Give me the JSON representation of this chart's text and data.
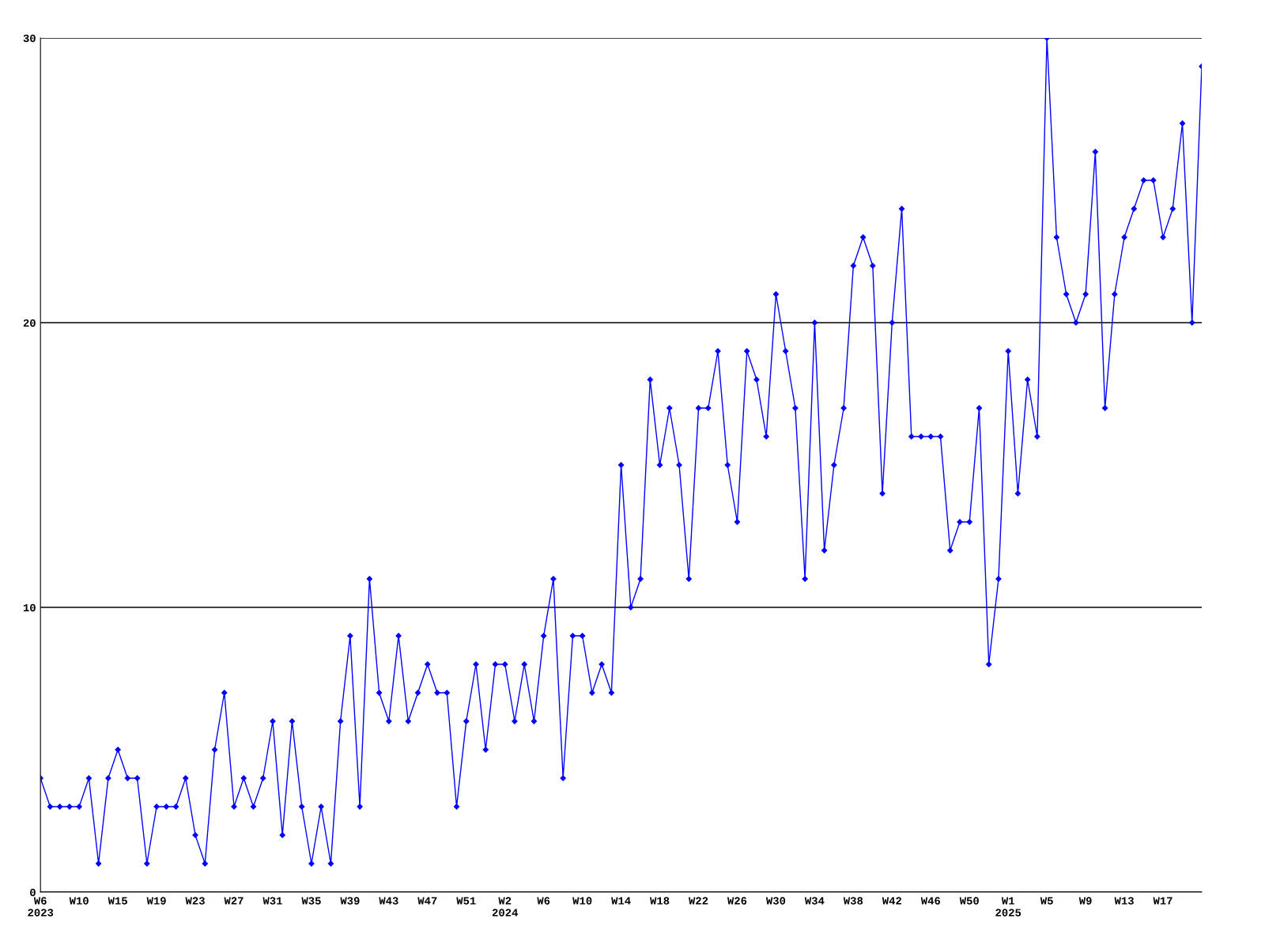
{
  "chart_data": {
    "type": "line",
    "categories": [
      "W6\n2023",
      null,
      null,
      null,
      "W10",
      null,
      null,
      null,
      "W15",
      null,
      null,
      null,
      "W19",
      null,
      null,
      null,
      "W23",
      null,
      null,
      null,
      "W27",
      null,
      null,
      null,
      "W31",
      null,
      null,
      null,
      "W35",
      null,
      null,
      null,
      "W39",
      null,
      null,
      null,
      "W43",
      null,
      null,
      null,
      "W47",
      null,
      null,
      null,
      "W51",
      null,
      null,
      null,
      "W2\n2024",
      null,
      null,
      null,
      "W6",
      null,
      null,
      null,
      "W10",
      null,
      null,
      null,
      "W14",
      null,
      null,
      null,
      "W18",
      null,
      null,
      null,
      "W22",
      null,
      null,
      null,
      "W26",
      null,
      null,
      null,
      "W30",
      null,
      null,
      null,
      "W34",
      null,
      null,
      null,
      "W38",
      null,
      null,
      null,
      "W42",
      null,
      null,
      null,
      "W46",
      null,
      null,
      null,
      "W50",
      null,
      null,
      null,
      "W1\n2025",
      null,
      null,
      null,
      "W5",
      null,
      null,
      null,
      "W9",
      null,
      null,
      null,
      "W13",
      null,
      null,
      null,
      "W17",
      null,
      null,
      null,
      null
    ],
    "series": [
      {
        "color": "#0000ff",
        "values": [
          4,
          3,
          3,
          3,
          3,
          4,
          1,
          4,
          5,
          4,
          4,
          1,
          3,
          3,
          3,
          4,
          2,
          1,
          5,
          7,
          3,
          4,
          3,
          4,
          6,
          2,
          6,
          3,
          1,
          3,
          1,
          6,
          9,
          3,
          11,
          7,
          6,
          9,
          6,
          7,
          8,
          7,
          7,
          3,
          6,
          8,
          5,
          8,
          8,
          6,
          8,
          6,
          9,
          11,
          4,
          9,
          9,
          7,
          8,
          7,
          15,
          10,
          11,
          18,
          15,
          17,
          15,
          11,
          17,
          17,
          19,
          15,
          13,
          19,
          18,
          16,
          21,
          19,
          17,
          11,
          20,
          12,
          15,
          17,
          22,
          23,
          22,
          14,
          20,
          24,
          16,
          16,
          16,
          16,
          12,
          13,
          13,
          17,
          8,
          11,
          19,
          14,
          18,
          16,
          30,
          23,
          21,
          20,
          21,
          26,
          17,
          21,
          23,
          24,
          25,
          25,
          23,
          24,
          27,
          20,
          29
        ]
      }
    ],
    "ylim": [
      0,
      30
    ],
    "yticks": [
      0,
      10,
      20,
      30
    ],
    "grid": "y",
    "marker": "diamond",
    "line_style": "solid",
    "legend": false
  }
}
